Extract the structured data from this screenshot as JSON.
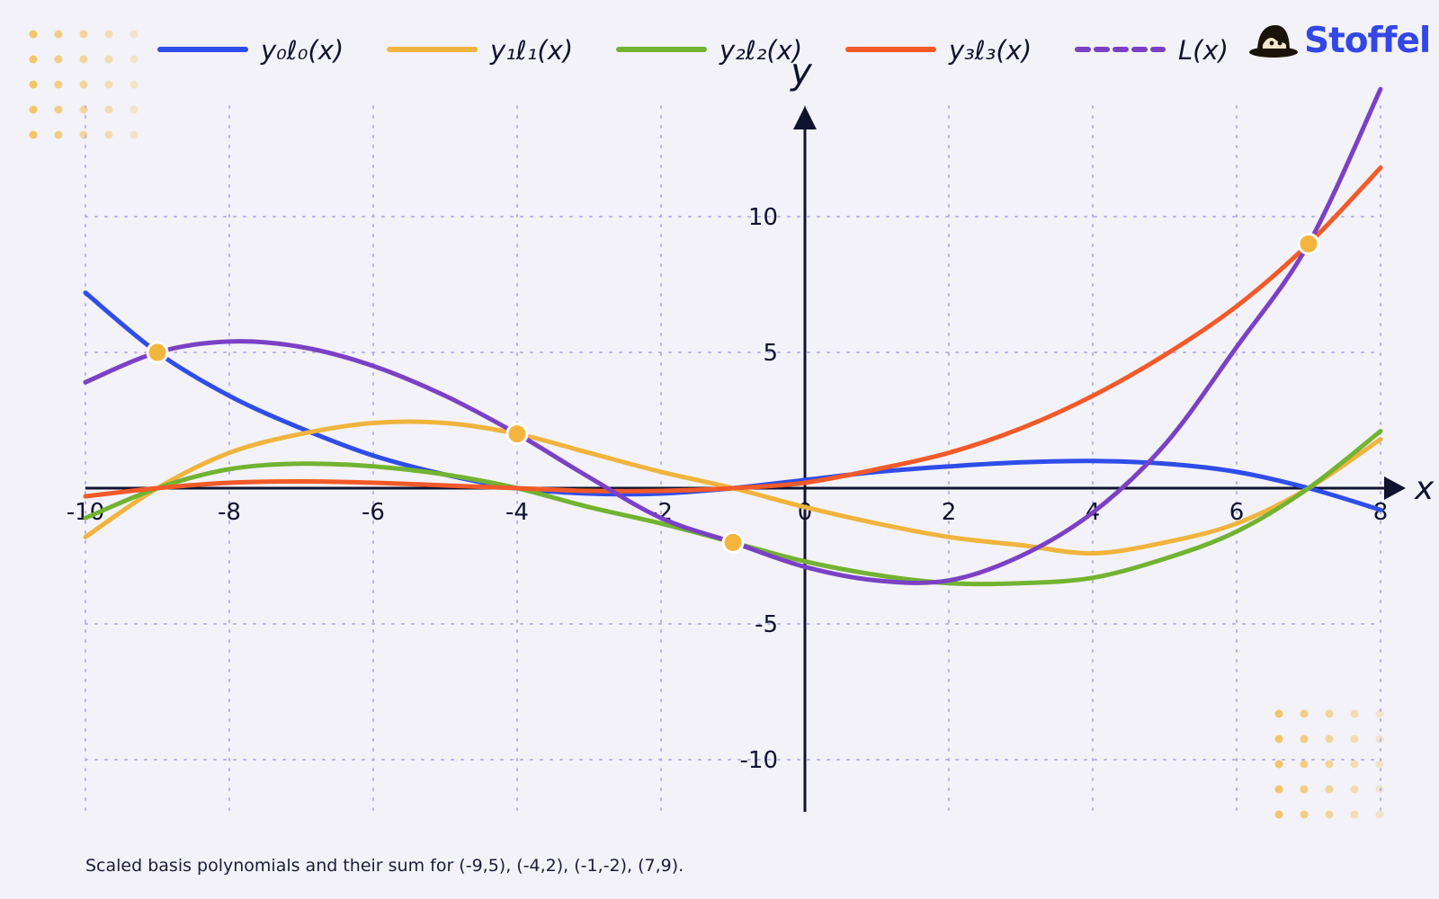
{
  "brand": {
    "name": "Stoffel",
    "color": "#3347e6",
    "icon": "hat-icon"
  },
  "caption": "Scaled basis polynomials and their sum for (-9,5), (-4,2), (-1,-2), (7,9).",
  "colors": {
    "background": "#f3f2f8",
    "axis": "#10132e",
    "grid": "#b6b2ee",
    "point": "#f4b53f",
    "dots": "#f2c56a"
  },
  "chart_data": {
    "type": "line",
    "xlabel": "x",
    "ylabel": "y",
    "xlim": [
      -10,
      8
    ],
    "ylim": [
      -12,
      14
    ],
    "xticks": [
      -10,
      -8,
      -6,
      -4,
      -2,
      0,
      2,
      4,
      6,
      8
    ],
    "xtick_labels": [
      "-10",
      "-8",
      "-6",
      "-4",
      "-2",
      "0",
      "2",
      "4",
      "6",
      "8"
    ],
    "yticks": [
      -10,
      -5,
      5,
      10
    ],
    "ytick_labels": [
      "-10",
      "-5",
      "5",
      "10"
    ],
    "grid": true,
    "legend_position": "top",
    "points": [
      {
        "x": -9,
        "y": 5
      },
      {
        "x": -4,
        "y": 2
      },
      {
        "x": -1,
        "y": -2
      },
      {
        "x": 7,
        "y": 9
      }
    ],
    "series": [
      {
        "name": "y₀ℓ₀(x)",
        "color": "#2f4de8",
        "dashed": false,
        "x": [
          -10,
          -9,
          -8,
          -7,
          -6,
          -5,
          -4,
          -3,
          -2,
          -1,
          0,
          1,
          2,
          3,
          4,
          5,
          6,
          7,
          8
        ],
        "y": [
          7.2,
          5,
          3.4,
          2.2,
          1.2,
          0.5,
          0,
          -0.2,
          -0.2,
          0,
          0.3,
          0.6,
          0.8,
          0.95,
          1,
          0.9,
          0.6,
          0,
          -0.8
        ]
      },
      {
        "name": "y₁ℓ₁(x)",
        "color": "#f0b43e",
        "dashed": false,
        "x": [
          -10,
          -9,
          -8,
          -7,
          -6,
          -5,
          -4,
          -3,
          -2,
          -1,
          0,
          1,
          2,
          3,
          4,
          5,
          6,
          7,
          8
        ],
        "y": [
          -1.8,
          0,
          1.3,
          2,
          2.4,
          2.4,
          2,
          1.3,
          0.6,
          0,
          -0.7,
          -1.3,
          -1.8,
          -2.1,
          -2.4,
          -2,
          -1.3,
          0,
          1.8
        ]
      },
      {
        "name": "y₂ℓ₂(x)",
        "color": "#72b332",
        "dashed": false,
        "x": [
          -10,
          -9,
          -8,
          -7,
          -6,
          -5,
          -4,
          -3,
          -2,
          -1,
          0,
          1,
          2,
          3,
          4,
          5,
          6,
          7,
          8
        ],
        "y": [
          -1.1,
          0,
          0.7,
          0.9,
          0.8,
          0.5,
          0,
          -0.7,
          -1.3,
          -2,
          -2.7,
          -3.2,
          -3.5,
          -3.5,
          -3.3,
          -2.6,
          -1.6,
          0,
          2.1
        ]
      },
      {
        "name": "y₃ℓ₃(x)",
        "color": "#f25a29",
        "dashed": false,
        "x": [
          -10,
          -9,
          -8,
          -7,
          -6,
          -5,
          -4,
          -3,
          -2,
          -1,
          0,
          1,
          2,
          3,
          4,
          5,
          6,
          7,
          8
        ],
        "y": [
          -0.3,
          0,
          0.2,
          0.25,
          0.2,
          0.1,
          0,
          -0.1,
          -0.1,
          0,
          0.2,
          0.7,
          1.3,
          2.2,
          3.4,
          4.9,
          6.7,
          9,
          11.8
        ]
      },
      {
        "name": "L(x)",
        "color": "#7b41c5",
        "dashed": true,
        "x": [
          -10,
          -9,
          -8,
          -7,
          -6,
          -5,
          -4,
          -3,
          -2,
          -1,
          0,
          1,
          2,
          3,
          4,
          5,
          6,
          7,
          8
        ],
        "y": [
          3.9,
          5,
          5.4,
          5.2,
          4.5,
          3.4,
          2,
          0.4,
          -1.1,
          -2,
          -2.9,
          -3.4,
          -3.4,
          -2.5,
          -0.9,
          1.6,
          5.2,
          9,
          14.7
        ]
      }
    ]
  }
}
